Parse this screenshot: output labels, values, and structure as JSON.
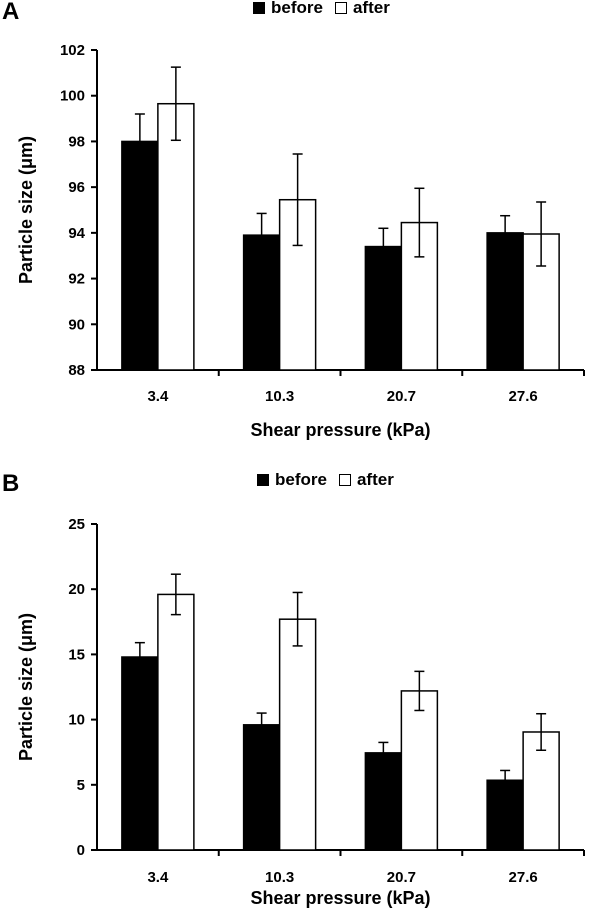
{
  "chart_data": [
    {
      "panel_label": "A",
      "type": "bar",
      "categories": [
        "3.4",
        "10.3",
        "20.7",
        "27.6"
      ],
      "series": [
        {
          "name": "before",
          "values": [
            98.0,
            93.9,
            93.4,
            94.0
          ],
          "errors": [
            1.2,
            0.95,
            0.8,
            0.75
          ],
          "color": "#000000"
        },
        {
          "name": "after",
          "values": [
            99.65,
            95.45,
            94.45,
            93.95
          ],
          "errors": [
            1.6,
            2.0,
            1.5,
            1.4
          ],
          "color": "#ffffff"
        }
      ],
      "xlabel": "Shear pressure (kPa)",
      "ylabel": "Particle size (μm)",
      "ylim": [
        88,
        102
      ],
      "yticks": [
        "88",
        "90",
        "92",
        "94",
        "96",
        "98",
        "100",
        "102"
      ],
      "legend_position": "top-center",
      "grid": false
    },
    {
      "panel_label": "B",
      "type": "bar",
      "categories": [
        "3.4",
        "10.3",
        "20.7",
        "27.6"
      ],
      "series": [
        {
          "name": "before",
          "values": [
            14.8,
            9.6,
            7.45,
            5.35
          ],
          "errors": [
            1.1,
            0.9,
            0.8,
            0.75
          ],
          "color": "#000000"
        },
        {
          "name": "after",
          "values": [
            19.6,
            17.7,
            12.2,
            9.05
          ],
          "errors": [
            1.55,
            2.05,
            1.5,
            1.4
          ],
          "color": "#ffffff"
        }
      ],
      "xlabel": "Shear pressure (kPa)",
      "ylabel": "Particle size (μm)",
      "ylim": [
        0,
        25
      ],
      "yticks": [
        "0",
        "5",
        "10",
        "15",
        "20",
        "25"
      ],
      "legend_position": "top-center",
      "grid": false
    }
  ]
}
